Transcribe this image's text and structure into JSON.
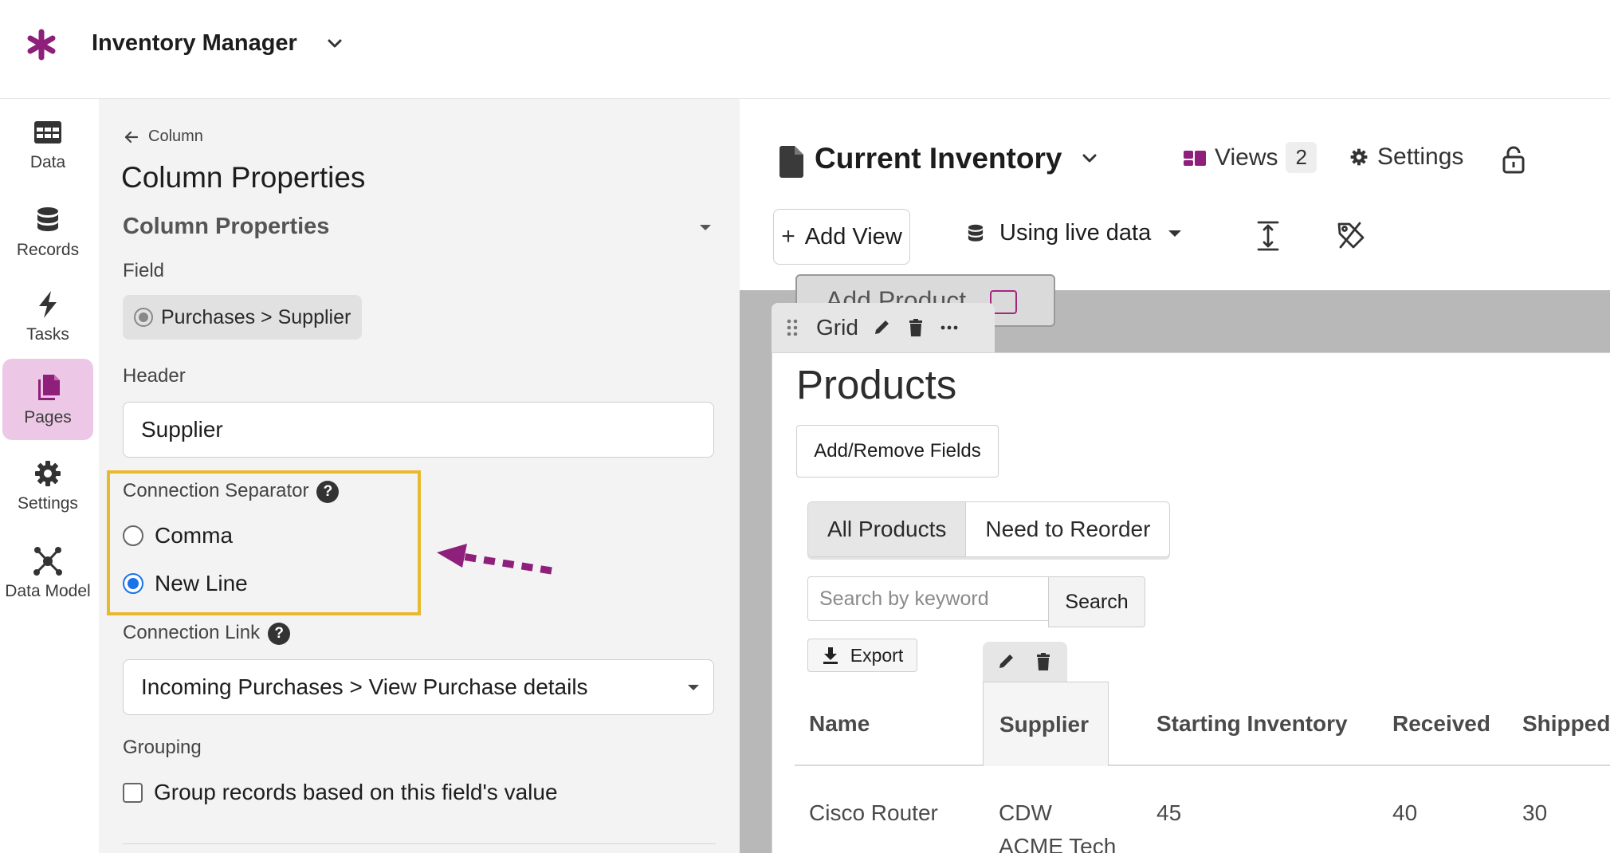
{
  "app": {
    "title": "Inventory Manager"
  },
  "nav": {
    "items": [
      {
        "label": "Data",
        "icon": "table-icon",
        "active": false
      },
      {
        "label": "Records",
        "icon": "database-icon",
        "active": false
      },
      {
        "label": "Tasks",
        "icon": "lightning-icon",
        "active": false
      },
      {
        "label": "Pages",
        "icon": "pages-icon",
        "active": true
      },
      {
        "label": "Settings",
        "icon": "gear-icon",
        "active": false
      },
      {
        "label": "Data Model",
        "icon": "data-model-icon",
        "active": false
      }
    ]
  },
  "panel": {
    "back_label": "Column",
    "title": "Column Properties",
    "section_title": "Column Properties",
    "field_label": "Field",
    "field_value": "Purchases > Supplier",
    "header_label": "Header",
    "header_value": "Supplier",
    "separator_label": "Connection Separator",
    "separator_options": [
      {
        "label": "Comma",
        "checked": false
      },
      {
        "label": "New Line",
        "checked": true
      }
    ],
    "link_label": "Connection Link",
    "link_value": "Incoming Purchases > View Purchase details",
    "grouping_label": "Grouping",
    "grouping_checkbox": "Group records based on this field's value",
    "help_glyph": "?"
  },
  "page": {
    "title": "Current Inventory",
    "views_label": "Views",
    "views_count": "2",
    "settings_label": "Settings",
    "add_view_label": "Add View",
    "add_view_glyph": "+",
    "live_data_label": "Using live data"
  },
  "canvas": {
    "ghost_button": "Add Product",
    "block_type": "Grid",
    "block_title": "Products",
    "add_remove_fields": "Add/Remove Fields",
    "tabs": [
      {
        "label": "All Products",
        "active": true
      },
      {
        "label": "Need to Reorder",
        "active": false
      }
    ],
    "search_placeholder": "Search by keyword",
    "search_button": "Search",
    "export_button": "Export",
    "table": {
      "columns": [
        "Name",
        "Supplier",
        "Starting Inventory",
        "Received",
        "Shipped"
      ],
      "rows": [
        [
          "Cisco Router",
          "CDW\nACME Tech",
          "45",
          "40",
          "30"
        ]
      ]
    }
  },
  "colors": {
    "brand": "#8e1f7a",
    "active_nav": "#ecc8e6",
    "highlight": "#e8b92f",
    "radio_checked": "#1a73e8"
  }
}
